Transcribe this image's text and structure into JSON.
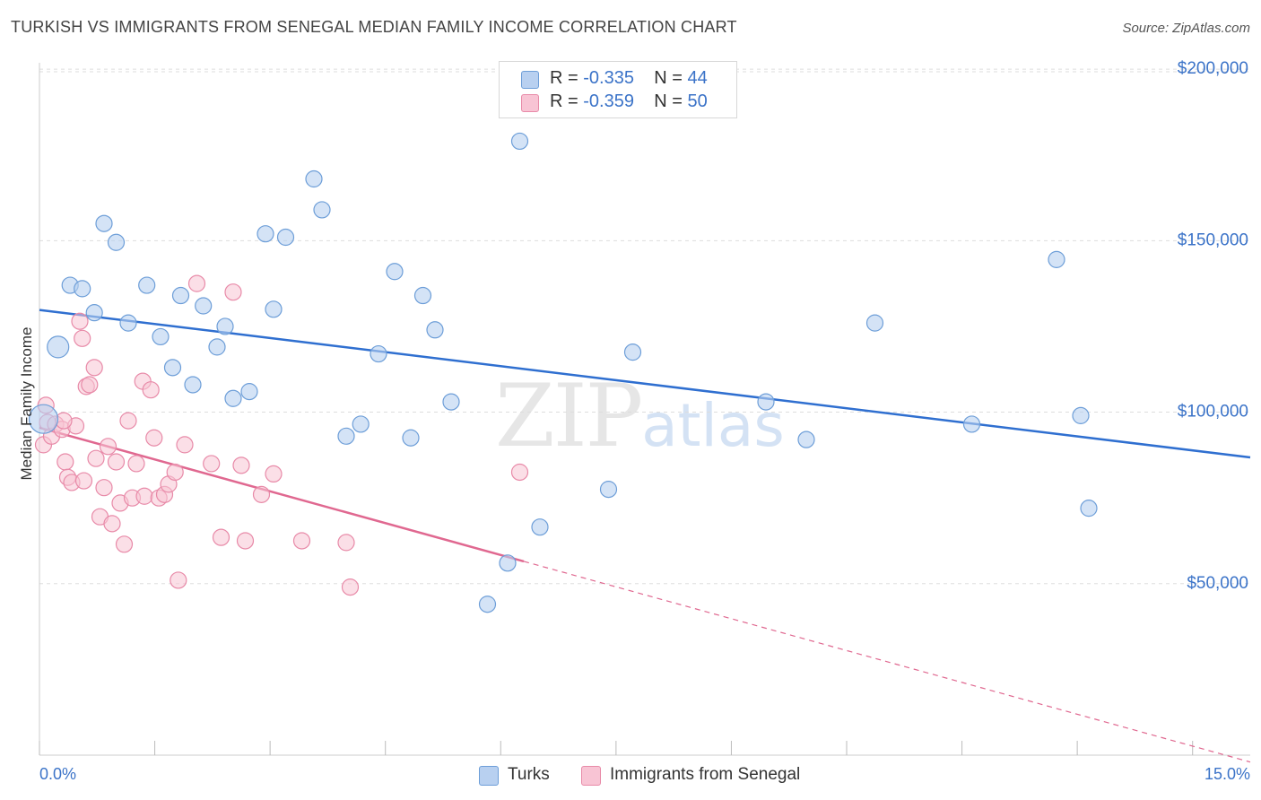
{
  "title": "TURKISH VS IMMIGRANTS FROM SENEGAL MEDIAN FAMILY INCOME CORRELATION CHART",
  "source": "Source: ZipAtlas.com",
  "watermark": {
    "zip": "ZIP",
    "atlas": "atlas"
  },
  "legend": {
    "turks": {
      "r_label": "R = ",
      "r_value": "-0.335",
      "n_label": "N = ",
      "n_value": "44"
    },
    "senegal": {
      "r_label": "R = ",
      "r_value": "-0.359",
      "n_label": "N = ",
      "n_value": "50"
    }
  },
  "bottom_legend": {
    "turks": "Turks",
    "senegal": "Immigrants from Senegal"
  },
  "colors": {
    "turks_fill": "#b8d0f0",
    "turks_stroke": "#6d9ed8",
    "turks_line": "#2f6fd0",
    "senegal_fill": "#f8c4d4",
    "senegal_stroke": "#e88aa8",
    "senegal_line": "#e06890",
    "grid": "#dddddd",
    "axis_text": "#3b73c8"
  },
  "chart_data": {
    "type": "scatter",
    "title": "TURKISH VS IMMIGRANTS FROM SENEGAL MEDIAN FAMILY INCOME CORRELATION CHART",
    "xlabel": "",
    "ylabel": "Median Family Income",
    "xlim": [
      0,
      15
    ],
    "ylim": [
      0,
      205000
    ],
    "x_tick_labels": [
      "0.0%",
      "15.0%"
    ],
    "y_ticks": [
      50000,
      100000,
      150000,
      200000
    ],
    "y_tick_labels": [
      "$50,000",
      "$100,000",
      "$150,000",
      "$200,000"
    ],
    "grid": true,
    "legend_position": "top-center",
    "series": [
      {
        "name": "Turks",
        "trend": {
          "x": [
            0.0,
            15.0
          ],
          "y": [
            129800,
            86800
          ]
        },
        "points": [
          [
            0.23,
            119000
          ],
          [
            0.38,
            137000
          ],
          [
            0.53,
            136000
          ],
          [
            0.68,
            129000
          ],
          [
            0.8,
            155000
          ],
          [
            0.95,
            149500
          ],
          [
            1.1,
            126000
          ],
          [
            1.33,
            137000
          ],
          [
            1.5,
            122000
          ],
          [
            1.65,
            113000
          ],
          [
            1.75,
            134000
          ],
          [
            1.9,
            108000
          ],
          [
            2.03,
            131000
          ],
          [
            2.2,
            119000
          ],
          [
            2.3,
            125000
          ],
          [
            2.4,
            104000
          ],
          [
            2.6,
            106000
          ],
          [
            2.8,
            152000
          ],
          [
            2.9,
            130000
          ],
          [
            3.05,
            151000
          ],
          [
            3.4,
            168000
          ],
          [
            3.5,
            159000
          ],
          [
            3.8,
            93000
          ],
          [
            3.98,
            96500
          ],
          [
            4.2,
            117000
          ],
          [
            4.4,
            141000
          ],
          [
            4.6,
            92500
          ],
          [
            4.75,
            134000
          ],
          [
            4.9,
            124000
          ],
          [
            5.1,
            103000
          ],
          [
            5.55,
            44000
          ],
          [
            5.8,
            56000
          ],
          [
            5.95,
            179000
          ],
          [
            6.2,
            66500
          ],
          [
            7.05,
            77500
          ],
          [
            7.35,
            117500
          ],
          [
            9.0,
            103000
          ],
          [
            9.5,
            92000
          ],
          [
            10.35,
            126000
          ],
          [
            11.55,
            96500
          ],
          [
            12.6,
            144500
          ],
          [
            12.9,
            99000
          ],
          [
            13.0,
            72000
          ],
          [
            0.05,
            98000
          ]
        ]
      },
      {
        "name": "Immigrants from Senegal",
        "trend": {
          "x": [
            0.0,
            6.0,
            15.0
          ],
          "y": [
            95500,
            56500,
            -2000
          ]
        },
        "points": [
          [
            0.05,
            90500
          ],
          [
            0.08,
            102000
          ],
          [
            0.1,
            97000
          ],
          [
            0.15,
            93000
          ],
          [
            0.2,
            96500
          ],
          [
            0.28,
            95000
          ],
          [
            0.32,
            85500
          ],
          [
            0.35,
            81000
          ],
          [
            0.4,
            79500
          ],
          [
            0.45,
            96000
          ],
          [
            0.5,
            126500
          ],
          [
            0.53,
            121500
          ],
          [
            0.58,
            107500
          ],
          [
            0.62,
            108000
          ],
          [
            0.68,
            113000
          ],
          [
            0.7,
            86500
          ],
          [
            0.75,
            69500
          ],
          [
            0.8,
            78000
          ],
          [
            0.85,
            90000
          ],
          [
            0.9,
            67500
          ],
          [
            0.95,
            85500
          ],
          [
            1.0,
            73500
          ],
          [
            1.05,
            61500
          ],
          [
            1.1,
            97500
          ],
          [
            1.15,
            75000
          ],
          [
            1.2,
            85000
          ],
          [
            1.28,
            109000
          ],
          [
            1.3,
            75500
          ],
          [
            1.38,
            106500
          ],
          [
            1.42,
            92500
          ],
          [
            1.48,
            75000
          ],
          [
            1.55,
            76000
          ],
          [
            1.6,
            79000
          ],
          [
            1.68,
            82500
          ],
          [
            1.72,
            51000
          ],
          [
            1.8,
            90500
          ],
          [
            1.95,
            137500
          ],
          [
            2.13,
            85000
          ],
          [
            2.25,
            63500
          ],
          [
            2.4,
            135000
          ],
          [
            2.5,
            84500
          ],
          [
            2.55,
            62500
          ],
          [
            2.75,
            76000
          ],
          [
            2.9,
            82000
          ],
          [
            3.25,
            62500
          ],
          [
            3.8,
            62000
          ],
          [
            3.85,
            49000
          ],
          [
            5.95,
            82500
          ],
          [
            0.55,
            80000
          ],
          [
            0.3,
            97500
          ]
        ]
      }
    ]
  }
}
